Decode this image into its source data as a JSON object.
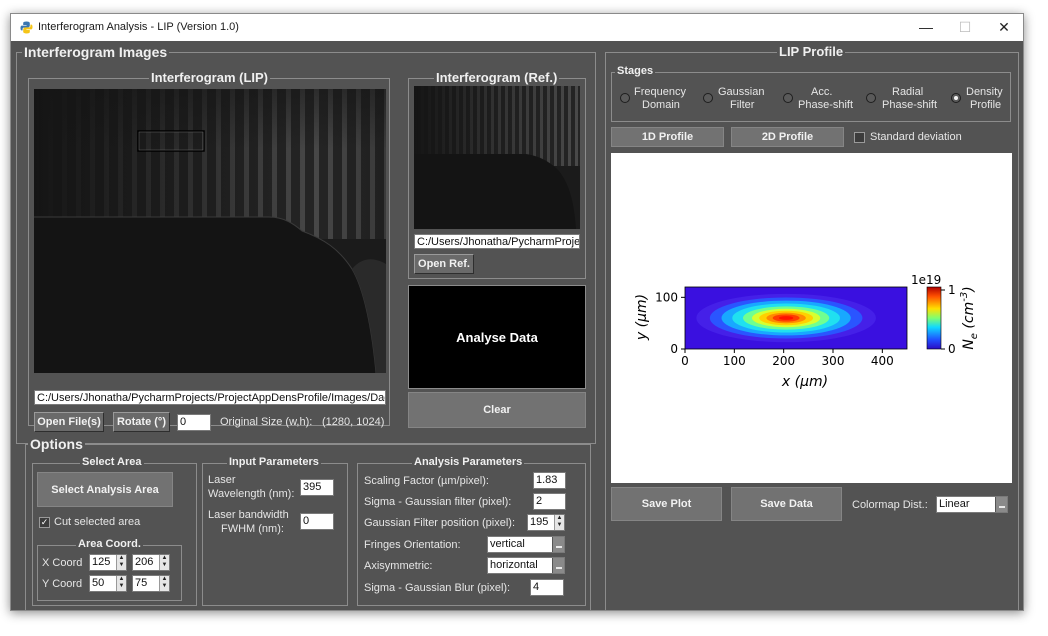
{
  "window": {
    "title": "Interferogram Analysis - LIP (Version 1.0)",
    "minimize_glyph": "—",
    "maximize_glyph": "☐",
    "close_glyph": "✕"
  },
  "images_panel": {
    "title": "Interferogram Images",
    "lip": {
      "title": "Interferogram (LIP)",
      "path": "C:/Users/Jhonatha/PycharmProjects/ProjectAppDensProfile/Images/Dado",
      "open_label": "Open File(s)",
      "rotate_label": "Rotate (°)",
      "rotate_value": "0",
      "orig_size_label": "Original Size (w,h):",
      "orig_size_value": "(1280, 1024)"
    },
    "ref": {
      "title": "Interferogram (Ref.)",
      "path": "C:/Users/Jhonatha/PycharmProjec",
      "open_label": "Open Ref."
    },
    "analyse_label": "Analyse Data",
    "clear_label": "Clear"
  },
  "options": {
    "title": "Options",
    "select_area": {
      "title": "Select Area",
      "button_label": "Select Analysis Area",
      "cut_label": "Cut selected area",
      "cut_checked": true,
      "coord_title": "Area Coord.",
      "x_label": "X Coord",
      "y_label": "Y Coord",
      "x1": "125",
      "x2": "206",
      "y1": "50",
      "y2": "75"
    },
    "input_params": {
      "title": "Input Parameters",
      "wavelength_label_1": "Laser",
      "wavelength_label_2": "Wavelength (nm):",
      "wavelength_value": "395",
      "fwhm_label_1": "Laser bandwidth",
      "fwhm_label_2": "FWHM  (nm):",
      "fwhm_value": "0"
    },
    "analysis_params": {
      "title": "Analysis Parameters",
      "scaling_label": "Scaling Factor (µm/pixel):",
      "scaling_value": "1.83",
      "sigma_label": "Sigma - Gaussian filter (pixel):",
      "sigma_value": "2",
      "gpos_label": "Gaussian Filter position (pixel):",
      "gpos_value": "195",
      "fringe_label": "Fringes Orientation:",
      "fringe_value": "vertical",
      "axis_label": "Axisymmetric:",
      "axis_value": "horizontal",
      "blur_label": "Sigma - Gaussian Blur (pixel):",
      "blur_value": "4"
    }
  },
  "lip_profile": {
    "title": "LIP Profile",
    "stages_title": "Stages",
    "stages": [
      {
        "l1": "Frequency",
        "l2": "Domain",
        "selected": false
      },
      {
        "l1": "Gaussian",
        "l2": "Filter",
        "selected": false
      },
      {
        "l1": "Acc.",
        "l2": "Phase-shift",
        "selected": false
      },
      {
        "l1": "Radial",
        "l2": "Phase-shift",
        "selected": false
      },
      {
        "l1": "Density",
        "l2": "Profile",
        "selected": true
      }
    ],
    "profile_1d_label": "1D Profile",
    "profile_2d_label": "2D Profile",
    "std_label": "Standard deviation",
    "std_checked": false,
    "save_plot_label": "Save Plot",
    "save_data_label": "Save Data",
    "colormap_label": "Colormap Dist.:",
    "colormap_value": "Linear"
  },
  "chart_data": {
    "type": "heatmap",
    "title": "",
    "xlabel": "x (µm)",
    "ylabel": "y (µm)",
    "xlim": [
      0,
      450
    ],
    "ylim": [
      0,
      120
    ],
    "xticks": [
      0,
      100,
      200,
      300,
      400
    ],
    "yticks": [
      0,
      100
    ],
    "colorbar": {
      "label": "N_e (cm^-3)",
      "exponent": "1e19",
      "ticks": [
        0,
        1
      ],
      "colormap": "jet"
    },
    "peak": {
      "x": 205,
      "y": 60,
      "value": 1.0
    },
    "sigma_x_um": 70,
    "sigma_y_um": 18
  }
}
